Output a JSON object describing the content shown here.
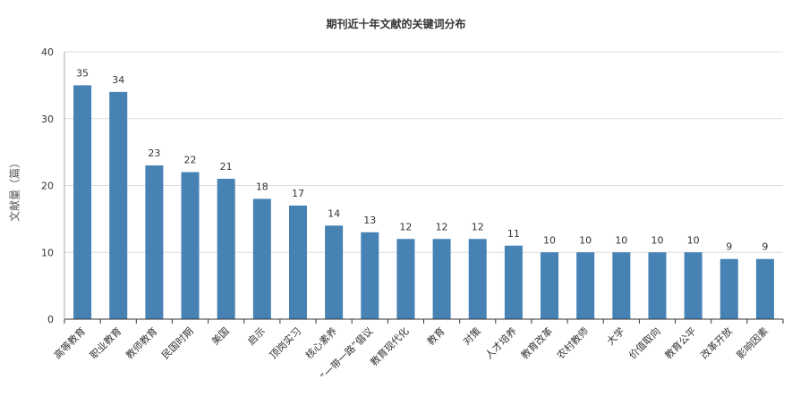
{
  "chart_data": {
    "type": "bar",
    "title": "期刊近十年文献的关键词分布",
    "xlabel": "",
    "ylabel": "文献量（篇）",
    "ylim": [
      0,
      40
    ],
    "yticks": [
      0,
      10,
      20,
      30,
      40
    ],
    "grid": true,
    "bar_color": "#4682b4",
    "categories": [
      "高等教育",
      "职业教育",
      "教师教育",
      "民国时期",
      "美国",
      "启示",
      "顶岗实习",
      "核心素养",
      "“一带一路”倡议",
      "教育现代化",
      "教育",
      "对策",
      "人才培养",
      "教育改革",
      "农村教师",
      "大学",
      "价值取向",
      "教育公平",
      "改革开放",
      "影响因素"
    ],
    "values": [
      35,
      34,
      23,
      22,
      21,
      18,
      17,
      14,
      13,
      12,
      12,
      12,
      11,
      10,
      10,
      10,
      10,
      10,
      9,
      9
    ]
  }
}
